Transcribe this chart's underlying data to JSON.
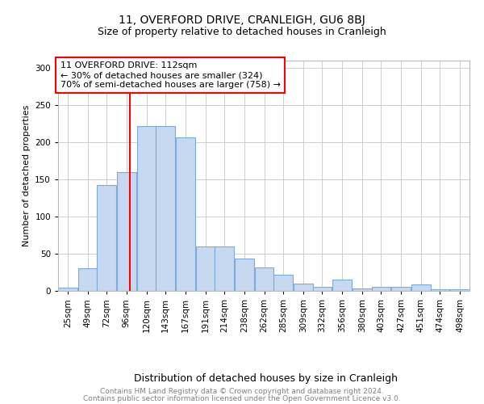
{
  "title": "11, OVERFORD DRIVE, CRANLEIGH, GU6 8BJ",
  "subtitle": "Size of property relative to detached houses in Cranleigh",
  "xlabel": "Distribution of detached houses by size in Cranleigh",
  "ylabel": "Number of detached properties",
  "footer1": "Contains HM Land Registry data © Crown copyright and database right 2024.",
  "footer2": "Contains public sector information licensed under the Open Government Licence v3.0.",
  "annotation_line1": "11 OVERFORD DRIVE: 112sqm",
  "annotation_line2": "← 30% of detached houses are smaller (324)",
  "annotation_line3": "70% of semi-detached houses are larger (758) →",
  "bar_color": "#c6d9f0",
  "bar_edge_color": "#7aadda",
  "red_line_x": 112,
  "bins": [
    25,
    49,
    72,
    96,
    120,
    143,
    167,
    191,
    214,
    238,
    262,
    285,
    309,
    332,
    356,
    380,
    403,
    427,
    451,
    474,
    498
  ],
  "values": [
    4,
    30,
    143,
    160,
    222,
    222,
    207,
    60,
    60,
    43,
    32,
    22,
    10,
    5,
    15,
    3,
    5,
    5,
    9,
    2,
    2
  ],
  "bin_width": 23,
  "ylim": [
    0,
    310
  ],
  "yticks": [
    0,
    50,
    100,
    150,
    200,
    250,
    300
  ],
  "background_color": "#ffffff",
  "grid_color": "#c8c8c8",
  "title_fontsize": 10,
  "subtitle_fontsize": 9,
  "ylabel_fontsize": 8,
  "xlabel_fontsize": 9,
  "tick_fontsize": 7.5,
  "footer_fontsize": 6.5,
  "annotation_fontsize": 8
}
